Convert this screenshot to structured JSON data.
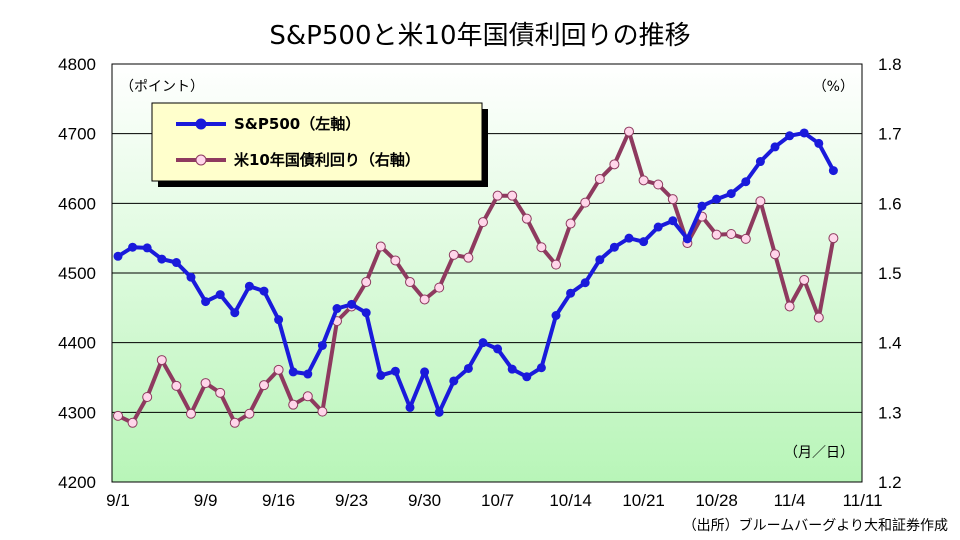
{
  "chart_data": {
    "type": "line",
    "title": "S&P500と米10年国債利回りの推移",
    "left_axis_unit": "（ポイント）",
    "right_axis_unit": "（%）",
    "x_axis_unit": "（月／日）",
    "source": "（出所）ブルームバーグより大和証券作成",
    "x_tick_labels": [
      "9/1",
      "9/9",
      "9/16",
      "9/23",
      "9/30",
      "10/7",
      "10/14",
      "10/21",
      "10/28",
      "11/4",
      "11/11"
    ],
    "x_tick_index": [
      0,
      6,
      11,
      16,
      21,
      26,
      31,
      36,
      41,
      46,
      51
    ],
    "y_left": {
      "min": 4200,
      "max": 4800,
      "ticks": [
        "4200",
        "4300",
        "4400",
        "4500",
        "4600",
        "4700",
        "4800"
      ]
    },
    "y_right": {
      "min": 1.2,
      "max": 1.8,
      "ticks": [
        "1.2",
        "1.3",
        "1.4",
        "1.5",
        "1.6",
        "1.7",
        "1.8"
      ]
    },
    "grid": true,
    "legend_position": "top-left",
    "series": [
      {
        "name": "S&P500（左軸）",
        "axis": "left",
        "color": "#1a1adb",
        "values": [
          4524,
          4537,
          4536,
          4520,
          4515,
          4494,
          4459,
          4469,
          4443,
          4481,
          4474,
          4433,
          4358,
          4355,
          4396,
          4449,
          4455,
          4443,
          4353,
          4359,
          4307,
          4358,
          4300,
          4345,
          4363,
          4400,
          4391,
          4362,
          4351,
          4364,
          4439,
          4471,
          4486,
          4519,
          4537,
          4550,
          4545,
          4566,
          4575,
          4549,
          4596,
          4606,
          4614,
          4631,
          4660,
          4681,
          4697,
          4701,
          4686,
          4647
        ],
        "x_start_index": 0
      },
      {
        "name": "米10年国債利回り（右軸）",
        "axis": "right",
        "color": "#8e3a5f",
        "values": [
          1.295,
          1.285,
          1.322,
          1.375,
          1.338,
          1.298,
          1.342,
          1.328,
          1.285,
          1.298,
          1.339,
          1.361,
          1.311,
          1.323,
          1.301,
          1.431,
          1.452,
          1.487,
          1.538,
          1.518,
          1.487,
          1.462,
          1.479,
          1.526,
          1.522,
          1.573,
          1.611,
          1.611,
          1.578,
          1.537,
          1.512,
          1.571,
          1.601,
          1.635,
          1.656,
          1.703,
          1.633,
          1.627,
          1.606,
          1.543,
          1.581,
          1.555,
          1.556,
          1.549,
          1.603,
          1.527,
          1.452,
          1.49,
          1.436,
          1.55
        ],
        "x_start_index": 0
      }
    ]
  }
}
